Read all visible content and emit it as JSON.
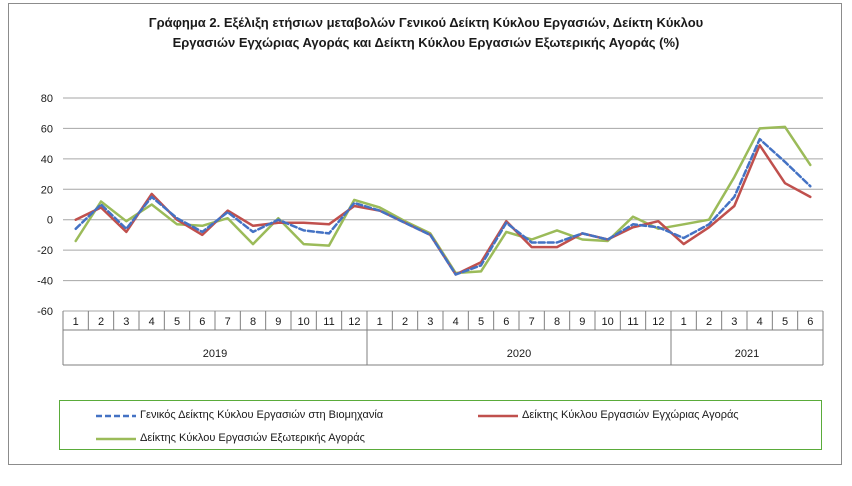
{
  "chart_data": {
    "type": "line",
    "title_line1": "Γράφημα 2. Εξέλιξη ετήσιων μεταβολών Γενικού Δείκτη Κύκλου Εργασιών,  Δείκτη Κύκλου",
    "title_line2": "Εργασιών Εγχώριας Αγοράς και Δείκτη Κύκλου Εργασιών Εξωτερικής Αγοράς (%)",
    "ylim": [
      -60,
      80
    ],
    "yticks": [
      "80",
      "60",
      "40",
      "20",
      "0",
      "-20",
      "-40",
      "-60"
    ],
    "ytick_values": [
      80,
      60,
      40,
      20,
      0,
      -20,
      -40,
      -60
    ],
    "categories": [
      "1",
      "2",
      "3",
      "4",
      "5",
      "6",
      "7",
      "8",
      "9",
      "10",
      "11",
      "12",
      "1",
      "2",
      "3",
      "4",
      "5",
      "6",
      "7",
      "8",
      "9",
      "10",
      "11",
      "12",
      "1",
      "2",
      "3",
      "4",
      "5",
      "6"
    ],
    "years": [
      {
        "label": "2019",
        "months": 12
      },
      {
        "label": "2020",
        "months": 12
      },
      {
        "label": "2021",
        "months": 6
      }
    ],
    "grid": true,
    "legend_position": "bottom",
    "series": [
      {
        "name": "Γενικός Δείκτης Κύκλου Εργασιών στη Βιομηχανία",
        "color": "#4472c4",
        "dash": true,
        "values": [
          -6,
          10,
          -6,
          15,
          1,
          -8,
          5,
          -8,
          0,
          -7,
          -9,
          11,
          6,
          -2,
          -10,
          -36,
          -30,
          -2,
          -15,
          -15,
          -9,
          -13,
          -3,
          -5,
          -12,
          -3,
          15,
          53,
          38,
          22
        ]
      },
      {
        "name": "Δείκτης Κύκλου Εργασιών Εγχώριας Αγοράς",
        "color": "#c0504d",
        "dash": false,
        "values": [
          0,
          8,
          -8,
          17,
          0,
          -10,
          6,
          -4,
          -2,
          -2,
          -3,
          9,
          6,
          -2,
          -10,
          -36,
          -28,
          -1,
          -18,
          -18,
          -9,
          -13,
          -5,
          -1,
          -16,
          -5,
          9,
          49,
          24,
          15
        ]
      },
      {
        "name": "Δείκτης Κύκλου Εργασιών Εξωτερικής Αγοράς",
        "color": "#9bbb59",
        "dash": false,
        "values": [
          -14,
          12,
          -1,
          10,
          -3,
          -4,
          1,
          -16,
          1,
          -16,
          -17,
          13,
          8,
          -1,
          -9,
          -35,
          -34,
          -8,
          -13,
          -7,
          -13,
          -14,
          2,
          -6,
          -3,
          0,
          28,
          60,
          61,
          36
        ]
      }
    ]
  }
}
